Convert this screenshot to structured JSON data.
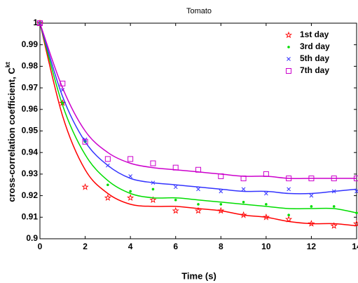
{
  "chart_data": {
    "type": "scatter",
    "title": "Tomato",
    "xlabel": "Time (s)",
    "ylabel": "cross-correlation coefficient, C",
    "ylabel_sup": "kt",
    "x": [
      0,
      1,
      2,
      3,
      4,
      5,
      6,
      7,
      8,
      9,
      10,
      11,
      12,
      13,
      14
    ],
    "xlim": [
      0,
      14
    ],
    "xticks": [
      0,
      2,
      4,
      6,
      8,
      10,
      12,
      14
    ],
    "ylim": [
      0.9,
      1
    ],
    "yticks": [
      0.9,
      0.91,
      0.92,
      0.93,
      0.94,
      0.95,
      0.96,
      0.97,
      0.98,
      0.99,
      1
    ],
    "legend": "upper right",
    "series": [
      {
        "name": "1st day",
        "color": "#ff0000",
        "marker": "star",
        "values": [
          1,
          0.963,
          0.924,
          0.919,
          0.919,
          0.918,
          0.913,
          0.913,
          0.913,
          0.911,
          0.91,
          0.909,
          0.907,
          0.906,
          0.907
        ],
        "fit": [
          1,
          0.957,
          0.932,
          0.921,
          0.916,
          0.915,
          0.915,
          0.914,
          0.913,
          0.911,
          0.91,
          0.908,
          0.907,
          0.907,
          0.906
        ]
      },
      {
        "name": "3rd day",
        "color": "#00dd00",
        "marker": "dot",
        "values": [
          1,
          0.963,
          0.945,
          0.925,
          0.922,
          0.923,
          0.918,
          0.916,
          0.916,
          0.917,
          0.916,
          0.911,
          0.915,
          0.915,
          0.912
        ],
        "fit": [
          1,
          0.962,
          0.939,
          0.927,
          0.921,
          0.919,
          0.919,
          0.918,
          0.917,
          0.916,
          0.915,
          0.914,
          0.914,
          0.914,
          0.912
        ]
      },
      {
        "name": "5th day",
        "color": "#3333ff",
        "marker": "x",
        "values": [
          1,
          0.969,
          0.946,
          0.934,
          0.929,
          0.926,
          0.924,
          0.923,
          0.922,
          0.923,
          0.921,
          0.923,
          0.92,
          0.922,
          0.922
        ],
        "fit": [
          1,
          0.966,
          0.945,
          0.934,
          0.928,
          0.926,
          0.925,
          0.924,
          0.923,
          0.922,
          0.922,
          0.921,
          0.921,
          0.922,
          0.923
        ]
      },
      {
        "name": "7th day",
        "color": "#cc00cc",
        "marker": "square",
        "values": [
          1,
          0.972,
          0.945,
          0.937,
          0.937,
          0.935,
          0.933,
          0.932,
          0.929,
          0.928,
          0.93,
          0.928,
          0.928,
          0.928,
          0.928
        ],
        "fit": [
          1,
          0.97,
          0.95,
          0.94,
          0.935,
          0.933,
          0.932,
          0.931,
          0.93,
          0.929,
          0.929,
          0.928,
          0.928,
          0.928,
          0.928
        ]
      }
    ]
  }
}
